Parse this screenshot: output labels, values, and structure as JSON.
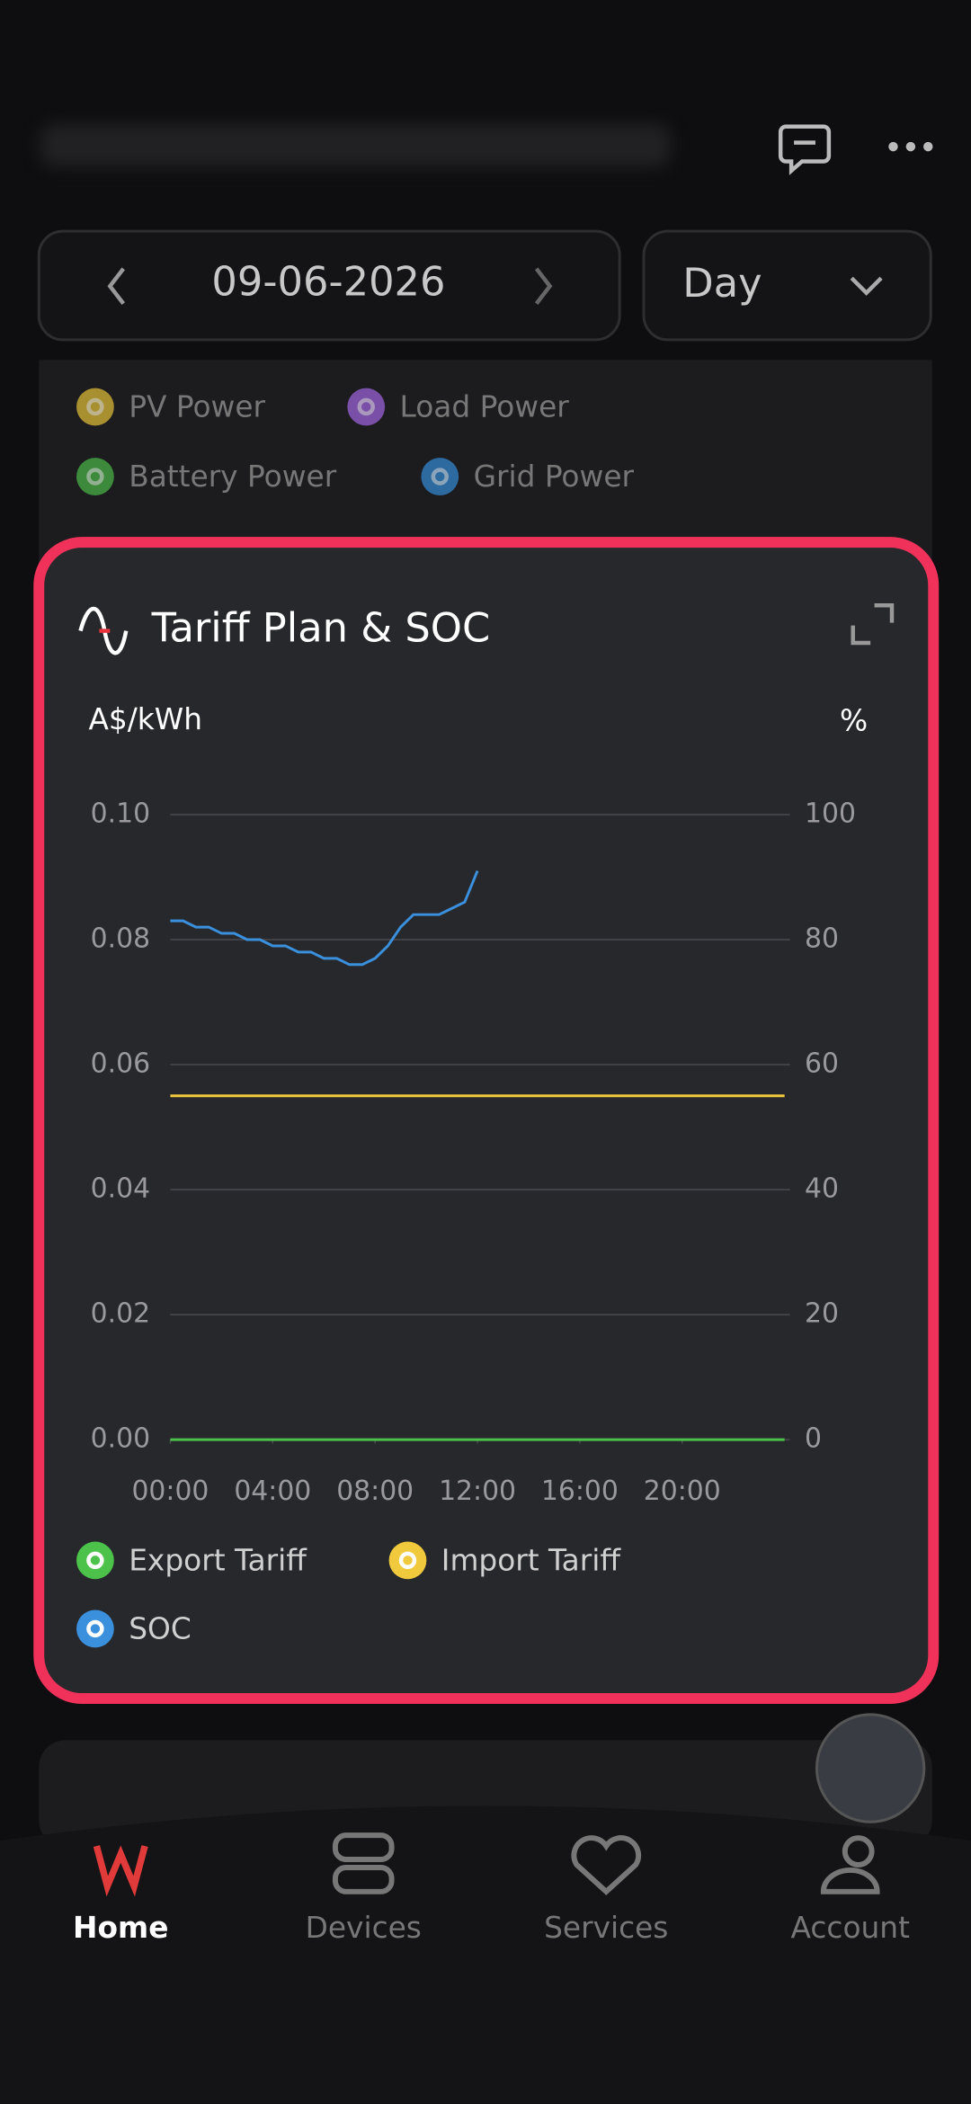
{
  "header": {
    "date": "09-06-2026",
    "period": "Day"
  },
  "power_legend": [
    "PV Power",
    "Load Power",
    "Battery Power",
    "Grid Power"
  ],
  "chart_data": {
    "type": "line",
    "title": "Tariff Plan & SOC",
    "y_label": "A$/kWh",
    "y2_label": "%",
    "xlim": [
      0,
      24
    ],
    "xticks": [
      {
        "value": 0,
        "label": "00:00"
      },
      {
        "value": 4,
        "label": "04:00"
      },
      {
        "value": 8,
        "label": "08:00"
      },
      {
        "value": 12,
        "label": "12:00"
      },
      {
        "value": 16,
        "label": "16:00"
      },
      {
        "value": 20,
        "label": "20:00"
      }
    ],
    "ylim": [
      0,
      0.1
    ],
    "yticks": [
      {
        "value": 0,
        "label": "0.00"
      },
      0.02,
      0.04,
      0.06,
      0.08,
      {
        "value": 0.1,
        "label": "0.10"
      }
    ],
    "y2lim": [
      0,
      100
    ],
    "y2ticks": [
      0,
      20,
      40,
      60,
      80,
      100
    ],
    "grid": true,
    "series": [
      {
        "name": "Export Tariff",
        "color": "#4cc24a",
        "x": [
          0,
          24
        ],
        "values": [
          0,
          0
        ]
      },
      {
        "name": "Import Tariff",
        "color": "#f0c93c",
        "x": [
          0,
          24
        ],
        "values": [
          0.055,
          0.055
        ]
      },
      {
        "name": "SOC",
        "color": "#3a90dc",
        "axis": "y2",
        "x": [
          0,
          0.5,
          1,
          1.5,
          2,
          2.5,
          3,
          3.5,
          4,
          4.5,
          5,
          5.5,
          6,
          6.5,
          7,
          7.5,
          8,
          8.5,
          9,
          9.5,
          10,
          10.5,
          11,
          11.5,
          12
        ],
        "values": [
          83,
          83,
          82,
          82,
          81,
          81,
          80,
          80,
          79,
          79,
          78,
          78,
          77,
          77,
          76,
          76,
          77,
          79,
          82,
          84,
          84,
          84,
          85,
          86,
          91
        ]
      }
    ]
  },
  "nav": [
    "Home",
    "Devices",
    "Services",
    "Account"
  ]
}
